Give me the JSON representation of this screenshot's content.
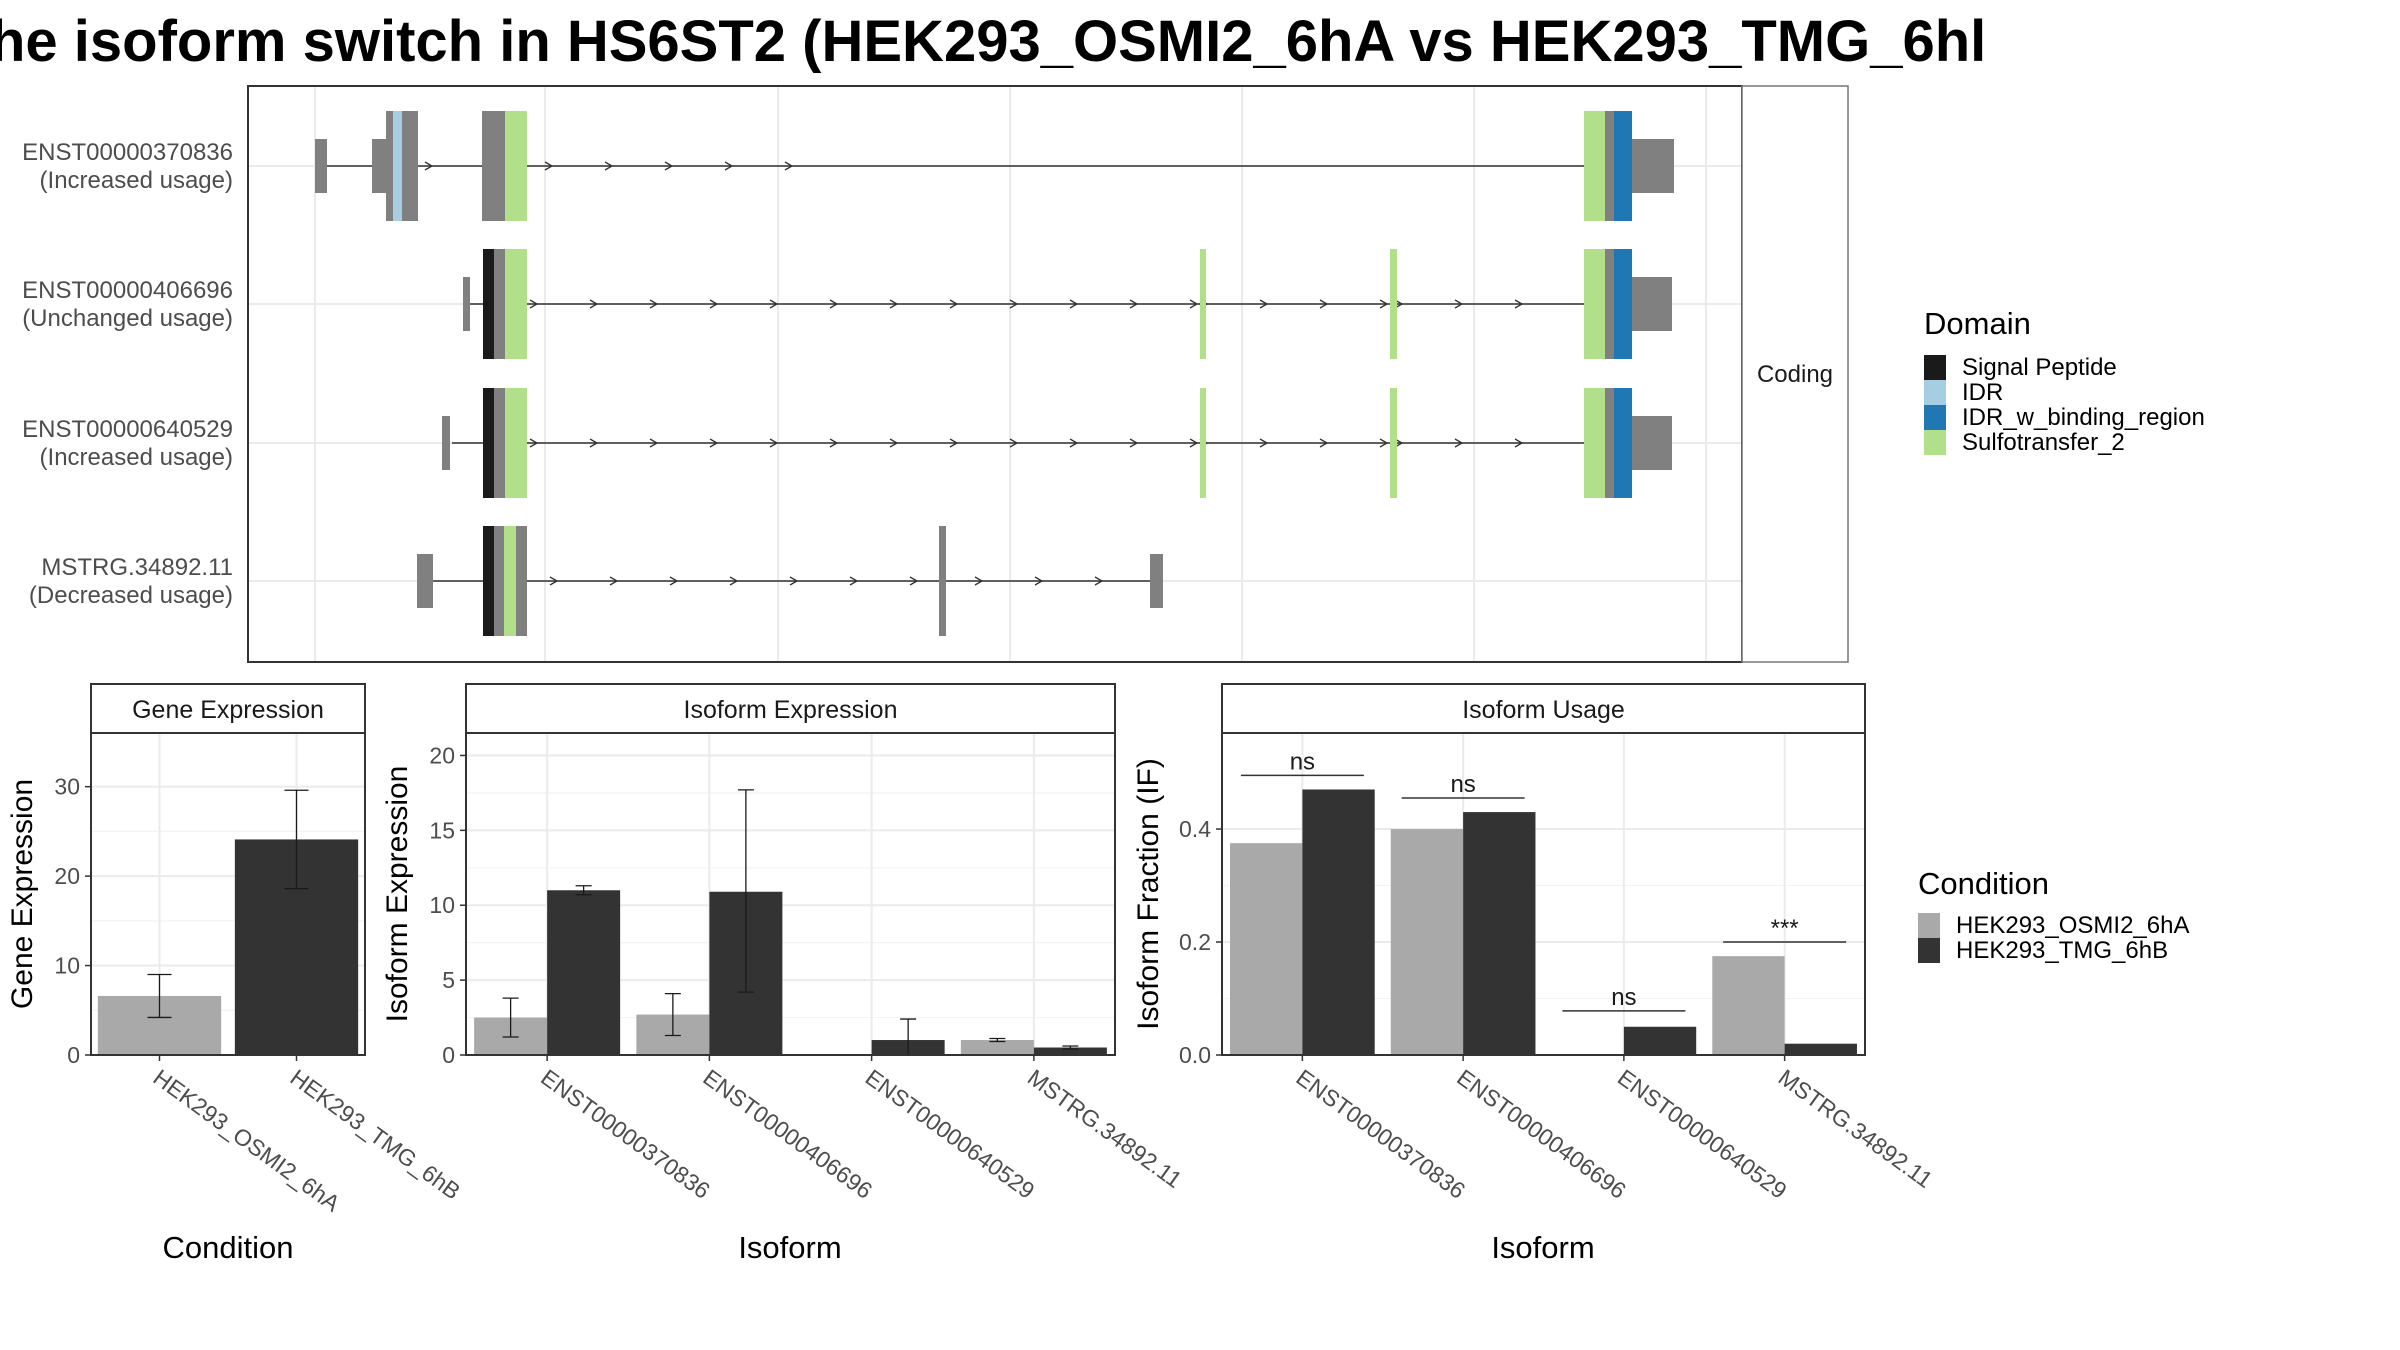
{
  "title": "he isoform switch in HS6ST2 (HEK293_OSMI2_6hA vs HEK293_TMG_6hl",
  "colors": {
    "signal_peptide": "#1a1a1a",
    "idr": "#a6cee3",
    "idr_binding": "#1f78b4",
    "sulfotransfer": "#b2df8a",
    "exon": "#808080",
    "cond_a": "#a9a9a9",
    "cond_b": "#333333"
  },
  "structure": {
    "facet_label": "Coding",
    "isoforms": [
      {
        "id": "ENST00000370836",
        "usage": "(Increased usage)"
      },
      {
        "id": "ENST00000406696",
        "usage": "(Unchanged usage)"
      },
      {
        "id": "ENST00000640529",
        "usage": "(Increased usage)"
      },
      {
        "id": "MSTRG.34892.11",
        "usage": "(Decreased usage)"
      }
    ]
  },
  "domain_legend": {
    "title": "Domain",
    "items": [
      "Signal Peptide",
      "IDR",
      "IDR_w_binding_region",
      "Sulfotransfer_2"
    ]
  },
  "condition_legend": {
    "title": "Condition",
    "items": [
      "HEK293_OSMI2_6hA",
      "HEK293_TMG_6hB"
    ]
  },
  "chart_data": [
    {
      "type": "bar",
      "title": "Gene Expression",
      "xlabel": "Condition",
      "ylabel": "Gene Expression",
      "ylim": [
        0,
        36
      ],
      "yticks": [
        0,
        10,
        20,
        30
      ],
      "categories": [
        "HEK293_OSMI2_6hA",
        "HEK293_TMG_6hB"
      ],
      "values": [
        6.6,
        24.1
      ],
      "errors": [
        [
          4.2,
          9.0
        ],
        [
          18.6,
          29.6
        ]
      ]
    },
    {
      "type": "bar",
      "title": "Isoform Expression",
      "xlabel": "Isoform",
      "ylabel": "Isoform Expression",
      "ylim": [
        0,
        21.5
      ],
      "yticks": [
        0,
        5,
        10,
        15,
        20
      ],
      "categories": [
        "ENST00000370836",
        "ENST00000406696",
        "ENST00000640529",
        "MSTRG.34892.11"
      ],
      "series": [
        {
          "name": "HEK293_OSMI2_6hA",
          "values": [
            2.5,
            2.7,
            0.0,
            1.0
          ],
          "errors": [
            [
              1.2,
              3.8
            ],
            [
              1.3,
              4.1
            ],
            [
              0.0,
              0.0
            ],
            [
              0.9,
              1.1
            ]
          ]
        },
        {
          "name": "HEK293_TMG_6hB",
          "values": [
            11.0,
            10.9,
            1.0,
            0.5
          ],
          "errors": [
            [
              10.7,
              11.3
            ],
            [
              4.2,
              17.7
            ],
            [
              0.0,
              2.4
            ],
            [
              0.4,
              0.6
            ]
          ]
        }
      ]
    },
    {
      "type": "bar",
      "title": "Isoform Usage",
      "xlabel": "Isoform",
      "ylabel": "Isoform Fraction (IF)",
      "ylim": [
        0,
        0.57
      ],
      "yticks": [
        0.0,
        0.2,
        0.4
      ],
      "categories": [
        "ENST00000370836",
        "ENST00000406696",
        "ENST00000640529",
        "MSTRG.34892.11"
      ],
      "series": [
        {
          "name": "HEK293_OSMI2_6hA",
          "values": [
            0.375,
            0.4,
            0.0,
            0.175
          ]
        },
        {
          "name": "HEK293_TMG_6hB",
          "values": [
            0.47,
            0.43,
            0.05,
            0.02
          ]
        }
      ],
      "significance": [
        "ns",
        "ns",
        "ns",
        "***"
      ]
    }
  ]
}
